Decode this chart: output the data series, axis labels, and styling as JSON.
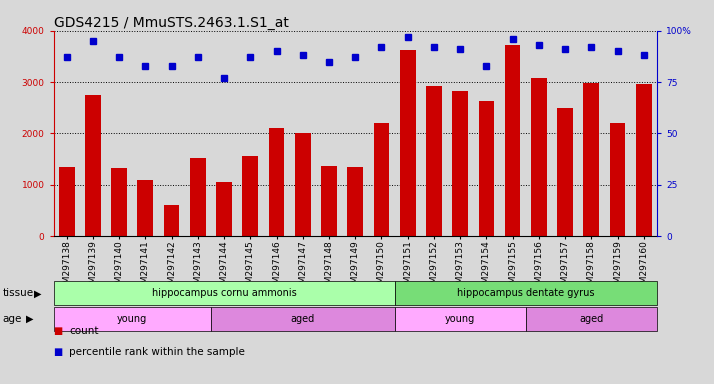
{
  "title": "GDS4215 / MmuSTS.2463.1.S1_at",
  "samples": [
    "GSM297138",
    "GSM297139",
    "GSM297140",
    "GSM297141",
    "GSM297142",
    "GSM297143",
    "GSM297144",
    "GSM297145",
    "GSM297146",
    "GSM297147",
    "GSM297148",
    "GSM297149",
    "GSM297150",
    "GSM297151",
    "GSM297152",
    "GSM297153",
    "GSM297154",
    "GSM297155",
    "GSM297156",
    "GSM297157",
    "GSM297158",
    "GSM297159",
    "GSM297160"
  ],
  "counts": [
    1350,
    2750,
    1320,
    1100,
    600,
    1520,
    1050,
    1560,
    2100,
    2000,
    1360,
    1340,
    2200,
    3620,
    2920,
    2830,
    2640,
    3720,
    3080,
    2500,
    2980,
    2200,
    2960
  ],
  "percentiles": [
    87,
    95,
    87,
    83,
    83,
    87,
    77,
    87,
    90,
    88,
    85,
    87,
    92,
    97,
    92,
    91,
    83,
    96,
    93,
    91,
    92,
    90,
    88
  ],
  "bar_color": "#cc0000",
  "dot_color": "#0000cc",
  "ylim_left": [
    0,
    4000
  ],
  "ylim_right": [
    0,
    100
  ],
  "yticks_left": [
    0,
    1000,
    2000,
    3000,
    4000
  ],
  "yticks_right": [
    0,
    25,
    50,
    75,
    100
  ],
  "tissue_regions": [
    {
      "label": "hippocampus cornu ammonis",
      "start": 0,
      "end": 13,
      "color": "#aaffaa"
    },
    {
      "label": "hippocampus dentate gyrus",
      "start": 13,
      "end": 23,
      "color": "#77dd77"
    }
  ],
  "age_regions": [
    {
      "label": "young",
      "start": 0,
      "end": 6,
      "color": "#ffaaff"
    },
    {
      "label": "aged",
      "start": 6,
      "end": 13,
      "color": "#dd88dd"
    },
    {
      "label": "young",
      "start": 13,
      "end": 18,
      "color": "#ffaaff"
    },
    {
      "label": "aged",
      "start": 18,
      "end": 23,
      "color": "#dd88dd"
    }
  ],
  "tissue_label": "tissue",
  "age_label": "age",
  "legend_count_label": "count",
  "legend_pct_label": "percentile rank within the sample",
  "bg_color": "#d8d8d8",
  "plot_bg_color": "#d8d8d8",
  "title_fontsize": 10,
  "tick_fontsize": 6.5,
  "bar_width": 0.6
}
